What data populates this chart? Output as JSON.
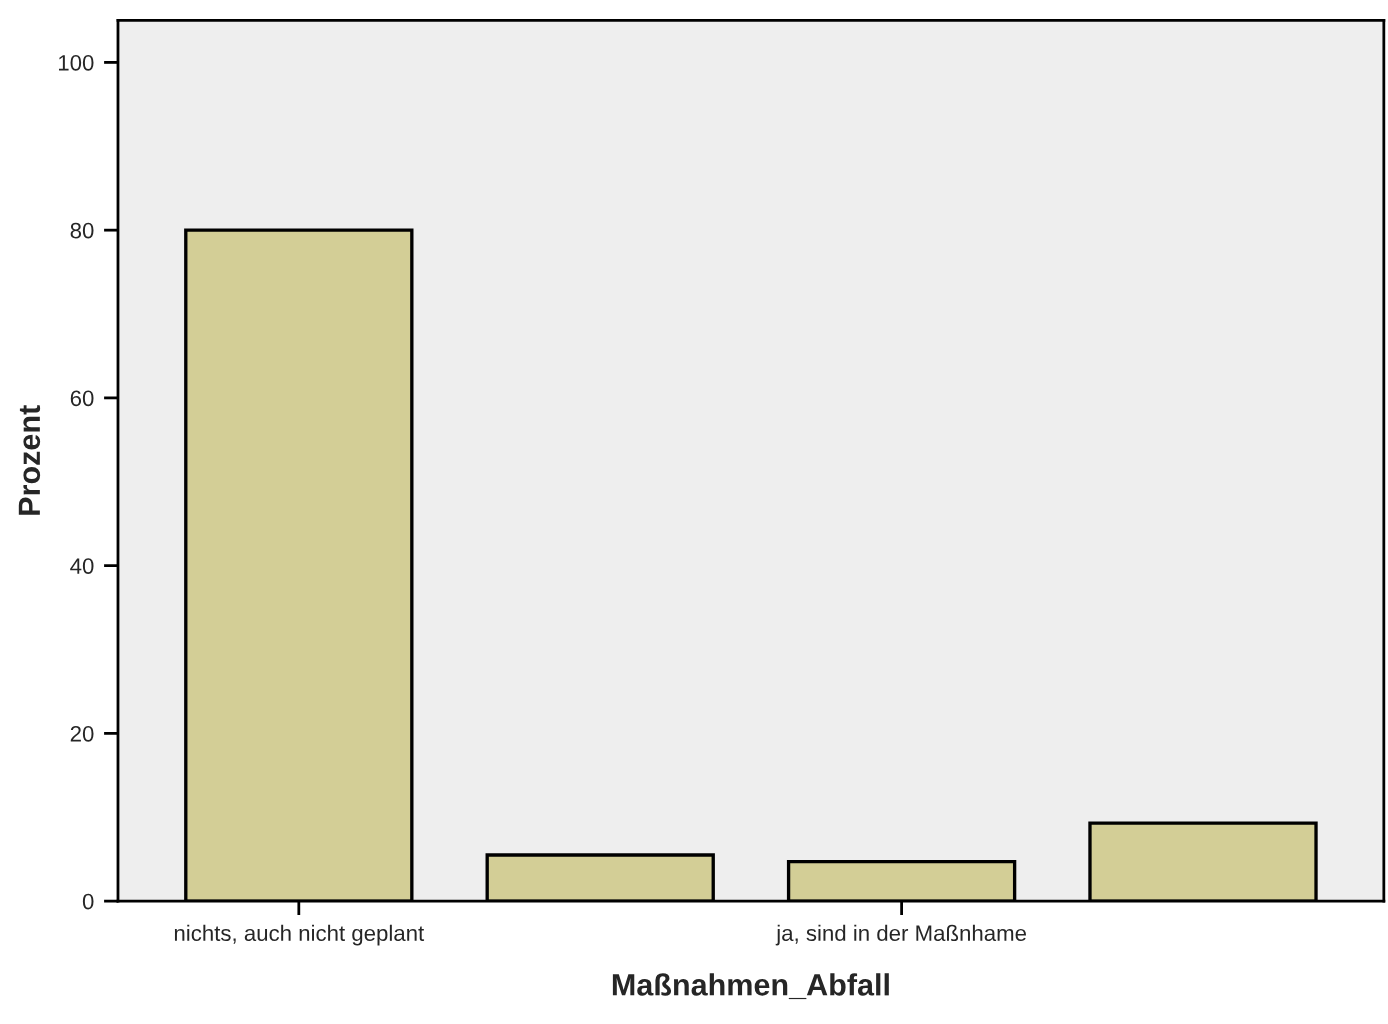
{
  "chart_data": {
    "type": "bar",
    "xlabel": "Maßnahmen_Abfall",
    "ylabel": "Prozent",
    "categories": [
      "nichts, auch nicht geplant",
      null,
      "ja, sind in der Maßnhame",
      null
    ],
    "values": [
      80,
      5.5,
      4.7,
      9.3
    ],
    "color": "#d3ce96",
    "ylim": [
      0,
      105
    ],
    "yticks": [
      0,
      20,
      40,
      60,
      80,
      100
    ],
    "grid": false,
    "legend": false
  }
}
